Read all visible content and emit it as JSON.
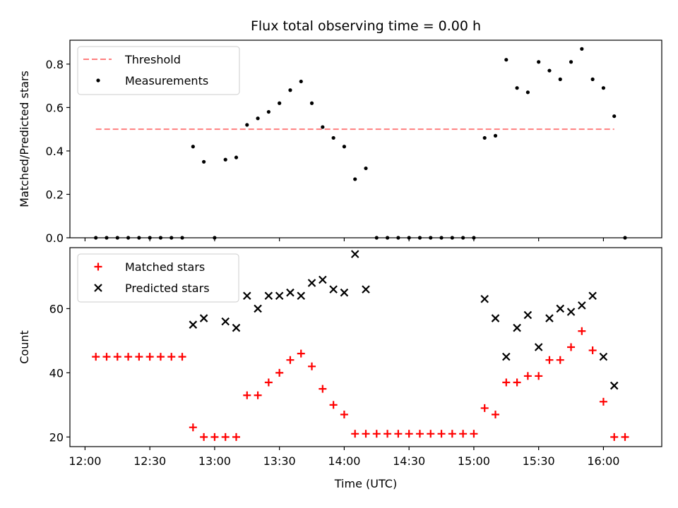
{
  "chart_data": [
    {
      "type": "scatter",
      "title": "Flux total observing time = 0.00 h",
      "ylabel": "Matched/Predicted stars",
      "xlabel": "",
      "ylim": [
        0,
        0.91
      ],
      "yticks": [
        0.0,
        0.2,
        0.4,
        0.6,
        0.8
      ],
      "ytick_labels": [
        "0.0",
        "0.2",
        "0.4",
        "0.6",
        "0.8"
      ],
      "xlim": [
        "11:53",
        "16:27"
      ],
      "legend_position": "top-left",
      "threshold": {
        "name": "Threshold",
        "value": 0.5,
        "x": [
          "12:05",
          "16:05"
        ],
        "color": "#ff7f7f",
        "style": "dashed"
      },
      "series": [
        {
          "name": "Measurements",
          "color": "#000000",
          "marker": "dot",
          "x": [
            "12:05",
            "12:10",
            "12:15",
            "12:20",
            "12:25",
            "12:30",
            "12:35",
            "12:40",
            "12:45",
            "12:50",
            "12:55",
            "13:00",
            "13:05",
            "13:10",
            "13:15",
            "13:20",
            "13:25",
            "13:30",
            "13:35",
            "13:40",
            "13:45",
            "13:50",
            "13:55",
            "14:00",
            "14:05",
            "14:10",
            "14:15",
            "14:20",
            "14:25",
            "14:30",
            "14:35",
            "14:40",
            "14:45",
            "14:50",
            "14:55",
            "15:00",
            "15:05",
            "15:10",
            "15:15",
            "15:20",
            "15:25",
            "15:30",
            "15:35",
            "15:40",
            "15:45",
            "15:50",
            "15:55",
            "16:00",
            "16:05",
            "16:10"
          ],
          "values": [
            0,
            0,
            0,
            0,
            0,
            0,
            0,
            0,
            0,
            0.42,
            0.35,
            0,
            0.36,
            0.37,
            0.52,
            0.55,
            0.58,
            0.62,
            0.68,
            0.72,
            0.62,
            0.51,
            0.46,
            0.42,
            0.27,
            0.32,
            0,
            0,
            0,
            0,
            0,
            0,
            0,
            0,
            0,
            0,
            0.46,
            0.47,
            0.82,
            0.69,
            0.67,
            0.81,
            0.77,
            0.73,
            0.81,
            0.87,
            0.73,
            0.69,
            0.56,
            0
          ]
        }
      ]
    },
    {
      "type": "scatter",
      "title": "",
      "ylabel": "Count",
      "xlabel": "Time (UTC)",
      "ylim": [
        17,
        79
      ],
      "yticks": [
        20,
        40,
        60
      ],
      "ytick_labels": [
        "20",
        "40",
        "60"
      ],
      "xlim": [
        "11:53",
        "16:27"
      ],
      "xticks": [
        "12:00",
        "12:30",
        "13:00",
        "13:30",
        "14:00",
        "14:30",
        "15:00",
        "15:30",
        "16:00"
      ],
      "legend_position": "top-left",
      "series": [
        {
          "name": "Matched stars",
          "color": "#ff0000",
          "marker": "plus",
          "x": [
            "12:05",
            "12:10",
            "12:15",
            "12:20",
            "12:25",
            "12:30",
            "12:35",
            "12:40",
            "12:45",
            "12:50",
            "12:55",
            "13:00",
            "13:05",
            "13:10",
            "13:15",
            "13:20",
            "13:25",
            "13:30",
            "13:35",
            "13:40",
            "13:45",
            "13:50",
            "13:55",
            "14:00",
            "14:05",
            "14:10",
            "14:15",
            "14:20",
            "14:25",
            "14:30",
            "14:35",
            "14:40",
            "14:45",
            "14:50",
            "14:55",
            "15:00",
            "15:05",
            "15:10",
            "15:15",
            "15:20",
            "15:25",
            "15:30",
            "15:35",
            "15:40",
            "15:45",
            "15:50",
            "15:55",
            "16:00",
            "16:05",
            "16:10"
          ],
          "values": [
            45,
            45,
            45,
            45,
            45,
            45,
            45,
            45,
            45,
            23,
            20,
            20,
            20,
            20,
            33,
            33,
            37,
            40,
            44,
            46,
            42,
            35,
            30,
            27,
            21,
            21,
            21,
            21,
            21,
            21,
            21,
            21,
            21,
            21,
            21,
            21,
            29,
            27,
            37,
            37,
            39,
            39,
            44,
            44,
            48,
            53,
            47,
            31,
            20,
            20
          ]
        },
        {
          "name": "Predicted stars",
          "color": "#000000",
          "marker": "x",
          "x": [
            "12:50",
            "12:55",
            "13:05",
            "13:10",
            "13:15",
            "13:20",
            "13:25",
            "13:30",
            "13:35",
            "13:40",
            "13:45",
            "13:50",
            "13:55",
            "14:00",
            "14:05",
            "14:10",
            "15:05",
            "15:10",
            "15:15",
            "15:20",
            "15:25",
            "15:30",
            "15:35",
            "15:40",
            "15:45",
            "15:50",
            "15:55",
            "16:00",
            "16:05"
          ],
          "values": [
            55,
            57,
            56,
            54,
            64,
            60,
            64,
            64,
            65,
            64,
            68,
            69,
            66,
            65,
            77,
            66,
            63,
            57,
            45,
            54,
            58,
            48,
            57,
            60,
            59,
            61,
            64,
            45,
            36
          ]
        }
      ]
    }
  ]
}
